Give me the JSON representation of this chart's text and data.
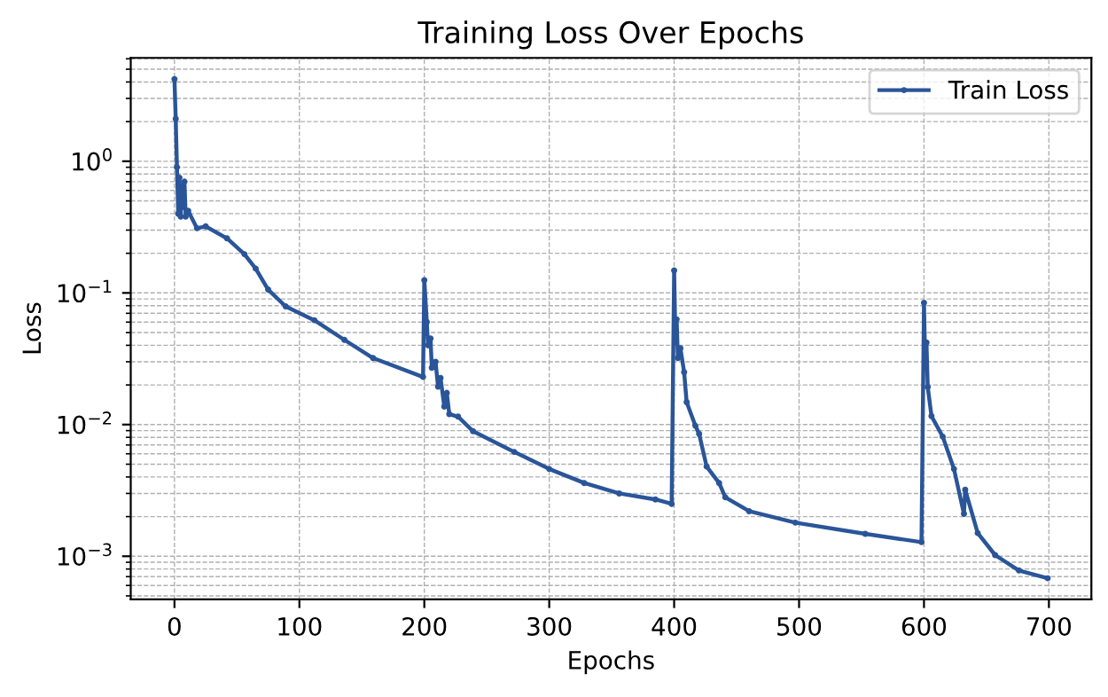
{
  "chart_data": {
    "type": "line",
    "title": "Training Loss Over Epochs",
    "xlabel": "Epochs",
    "ylabel": "Loss",
    "series": [
      {
        "name": "Train Loss",
        "color": "#2a5599",
        "x": [
          0,
          1,
          2,
          3,
          4,
          5,
          6,
          7,
          8,
          9,
          11,
          18,
          25,
          42,
          56,
          65,
          75,
          89,
          112,
          136,
          159,
          199,
          200,
          202,
          203,
          205,
          206,
          207,
          209,
          211,
          213,
          216,
          218,
          220,
          227,
          239,
          272,
          300,
          328,
          356,
          385,
          398,
          400,
          401,
          402,
          403,
          405,
          408,
          410,
          417,
          420,
          426,
          436,
          441,
          460,
          497,
          553,
          598,
          600,
          601,
          602,
          603,
          606,
          615,
          624,
          632,
          633,
          643,
          657,
          676,
          699
        ],
        "values": [
          4.2,
          2.1,
          0.9,
          0.4,
          0.75,
          0.38,
          0.65,
          0.45,
          0.7,
          0.38,
          0.42,
          0.31,
          0.32,
          0.26,
          0.197,
          0.153,
          0.106,
          0.079,
          0.062,
          0.044,
          0.032,
          0.023,
          0.125,
          0.06,
          0.04,
          0.045,
          0.027,
          0.028,
          0.03,
          0.0194,
          0.0226,
          0.0137,
          0.0174,
          0.012,
          0.0115,
          0.0089,
          0.0062,
          0.0046,
          0.0036,
          0.003,
          0.0027,
          0.0025,
          0.148,
          0.042,
          0.063,
          0.032,
          0.038,
          0.025,
          0.0148,
          0.0098,
          0.0085,
          0.0048,
          0.0036,
          0.0028,
          0.0022,
          0.0018,
          0.00148,
          0.00128,
          0.084,
          0.028,
          0.042,
          0.0193,
          0.0116,
          0.0081,
          0.0046,
          0.0021,
          0.0032,
          0.0015,
          0.00102,
          0.00078,
          0.00068
        ]
      }
    ],
    "log": "y",
    "xlim": [
      -35,
      734
    ],
    "ylim": [
      0.00047,
      6.1
    ],
    "xticks": [
      0,
      100,
      200,
      300,
      400,
      500,
      600,
      700
    ],
    "yticks": [
      {
        "value": 0.001,
        "label": "10$^{−3}$"
      },
      {
        "value": 0.01,
        "label": "10$^{−2}$"
      },
      {
        "value": 0.1,
        "label": "10$^{−1}$"
      },
      {
        "value": 1,
        "label": "10$^{0}$"
      }
    ],
    "grid": true,
    "legend": "top right",
    "marker": "circle",
    "line_style": "solid"
  }
}
